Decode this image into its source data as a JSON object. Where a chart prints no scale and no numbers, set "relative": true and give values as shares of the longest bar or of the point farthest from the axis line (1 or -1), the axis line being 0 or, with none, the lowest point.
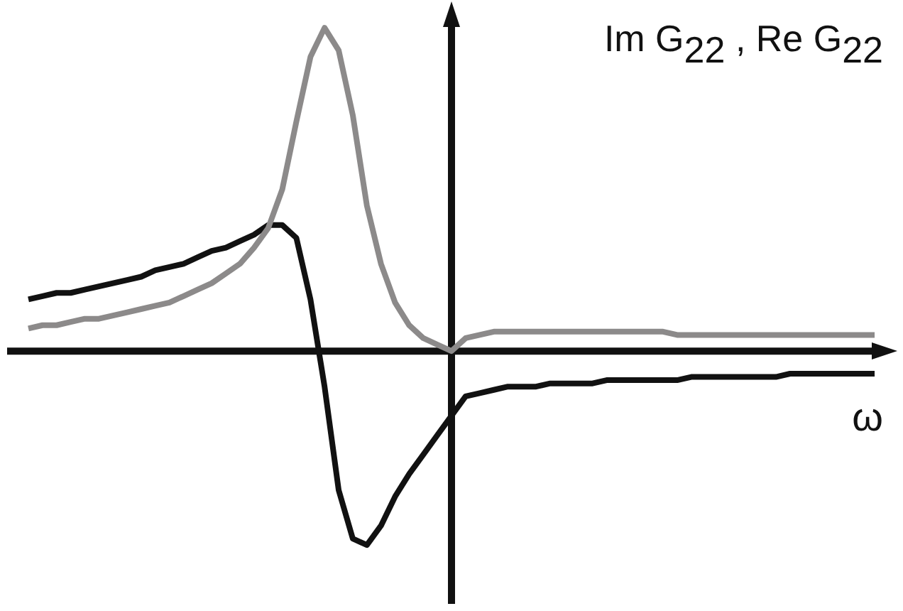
{
  "chart_data": {
    "type": "line",
    "relative": true,
    "xlabel": "ω",
    "ylabel": "Im G$_{22}$ , Re G$_{22}$",
    "categories": [
      null,
      null,
      null,
      null,
      null,
      null,
      null,
      null,
      null,
      null,
      null,
      null,
      null,
      null,
      null,
      null,
      null,
      null,
      null,
      null,
      null,
      null,
      null,
      null,
      null,
      null,
      null,
      null,
      null,
      null,
      null,
      null,
      null,
      null,
      null,
      null,
      null,
      null,
      null,
      null,
      null,
      null,
      null,
      null,
      null,
      null,
      null,
      null,
      null,
      null,
      null,
      null,
      null,
      null,
      null,
      null,
      null,
      null,
      null,
      null,
      null
    ],
    "series": [
      {
        "color": "#8c8a8a",
        "values": [
          0.07,
          0.08,
          0.08,
          0.09,
          0.1,
          0.1,
          0.11,
          0.12,
          0.13,
          0.14,
          0.15,
          0.17,
          0.19,
          0.21,
          0.24,
          0.27,
          0.32,
          0.38,
          0.5,
          0.71,
          0.91,
          1,
          0.93,
          0.73,
          0.45,
          0.27,
          0.15,
          0.08,
          0.04,
          0.02,
          0,
          0.04,
          0.05,
          0.06,
          0.06,
          0.06,
          0.06,
          0.06,
          0.06,
          0.06,
          0.06,
          0.06,
          0.06,
          0.06,
          0.06,
          0.06,
          0.05,
          0.05,
          0.05,
          0.05,
          0.05,
          0.05,
          0.05,
          0.05,
          0.05,
          0.05,
          0.05,
          0.05,
          0.05,
          0.05,
          0.05
        ]
      },
      {
        "color": "#111111",
        "values": [
          0.16,
          0.17,
          0.18,
          0.18,
          0.19,
          0.2,
          0.21,
          0.22,
          0.23,
          0.25,
          0.26,
          0.27,
          0.29,
          0.31,
          0.32,
          0.34,
          0.36,
          0.39,
          0.39,
          0.35,
          0.16,
          -0.11,
          -0.43,
          -0.58,
          -0.6,
          -0.54,
          -0.45,
          -0.38,
          -0.32,
          -0.26,
          -0.2,
          -0.14,
          -0.13,
          -0.12,
          -0.11,
          -0.11,
          -0.11,
          -0.1,
          -0.1,
          -0.1,
          -0.1,
          -0.09,
          -0.09,
          -0.09,
          -0.09,
          -0.09,
          -0.09,
          -0.08,
          -0.08,
          -0.08,
          -0.08,
          -0.08,
          -0.08,
          -0.08,
          -0.07,
          -0.07,
          -0.07,
          -0.07,
          -0.07,
          -0.07,
          -0.07
        ]
      }
    ],
    "legend": false,
    "marker": "none",
    "line_style": "solid"
  }
}
